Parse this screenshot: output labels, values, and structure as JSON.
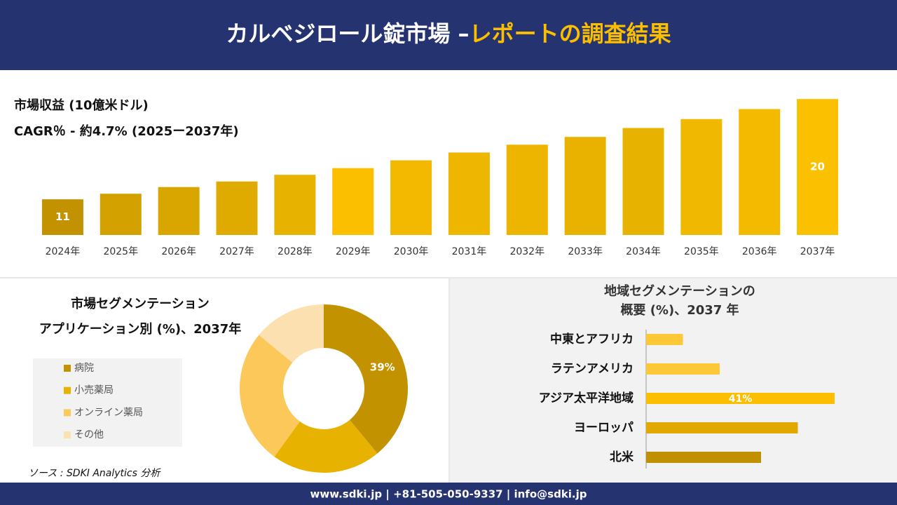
{
  "header": {
    "title_main": "カルベジロール錠市場 –",
    "title_highlight": "レポートの調査結果"
  },
  "chart_data": [
    {
      "type": "bar",
      "title": "市場収益 (10億米ドル)",
      "subtitle": "CAGR％ - 約4.7% (2025ー2037年)",
      "categories": [
        "2024年",
        "2025年",
        "2026年",
        "2027年",
        "2028年",
        "2029年",
        "2030年",
        "2031年",
        "2032年",
        "2033年",
        "2034年",
        "2035年",
        "2036年",
        "2037年"
      ],
      "values": [
        11,
        11.5,
        12.1,
        12.6,
        13.2,
        13.8,
        14.5,
        15.2,
        15.9,
        16.6,
        17.4,
        18.2,
        19.1,
        20
      ],
      "value_labels": [
        "11",
        null,
        null,
        null,
        null,
        null,
        null,
        null,
        null,
        null,
        null,
        null,
        null,
        "20"
      ],
      "colors": [
        "#c39200",
        "#d4a200",
        "#d9a600",
        "#e0ab00",
        "#e8b200",
        "#fbbf00",
        "#f3b900",
        "#efb600",
        "#edb500",
        "#e9b200",
        "#e8b200",
        "#f0b800",
        "#f3ba00",
        "#fbc000"
      ],
      "ylim": [
        7.8,
        20.2
      ]
    },
    {
      "type": "donut",
      "title": "市場セグメンテーション",
      "subtitle": "アプリケーション別 (%)、2037年",
      "categories": [
        "病院",
        "小売薬局",
        "オンライン薬局",
        "その他"
      ],
      "values": [
        39,
        21,
        26,
        14
      ],
      "value_labels": [
        "39%",
        null,
        null,
        null
      ],
      "colors": [
        "#c39200",
        "#e8b200",
        "#fdc85a",
        "#fde0b0"
      ],
      "legend": "left"
    },
    {
      "type": "hbar",
      "title": "地域セグメンテーションの",
      "subtitle": "概要 (%)、2037 年",
      "categories": [
        "中東とアフリカ",
        "ラテンアメリカ",
        "アジア太平洋地域",
        "ヨーロッパ",
        "北米"
      ],
      "values": [
        8,
        16,
        41,
        33,
        25
      ],
      "value_labels": [
        null,
        null,
        "41%",
        null,
        null
      ],
      "colors": [
        "#fdc838",
        "#fdc838",
        "#fbbf00",
        "#e0a800",
        "#c09000"
      ],
      "xlim": [
        0,
        50
      ]
    }
  ],
  "source": "ソース : SDKI Analytics 分析",
  "footer": "www.sdki.jp | +81-505-050-9337 | info@sdki.jp"
}
